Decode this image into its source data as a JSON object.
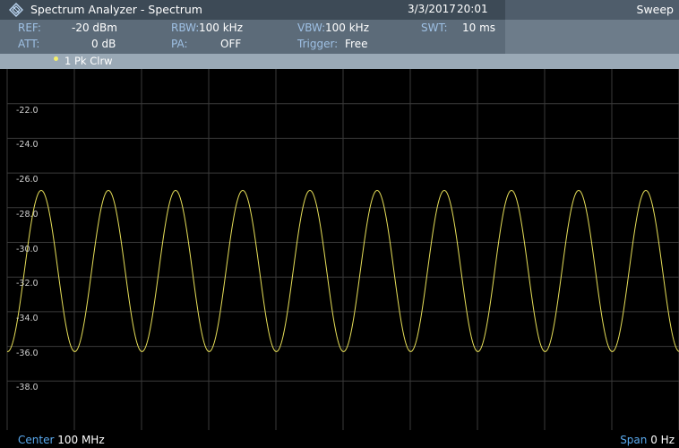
{
  "title_bar": {
    "app_title": "Spectrum Analyzer - Spectrum",
    "date": "3/3/2017",
    "time": "20:01",
    "mode": "Sweep",
    "logo_icon": "rohde-schwarz-logo-icon"
  },
  "parameters": {
    "ref": {
      "label": "REF:",
      "value": "-20 dBm"
    },
    "att": {
      "label": "ATT:",
      "value": "0 dB"
    },
    "rbw": {
      "label": "RBW:",
      "value": "100 kHz"
    },
    "pa": {
      "label": "PA:",
      "value": "OFF"
    },
    "vbw": {
      "label": "VBW:",
      "value": "100 kHz"
    },
    "trigger": {
      "label": "Trigger:",
      "value": "Free"
    },
    "swt": {
      "label": "SWT:",
      "value": "10 ms"
    }
  },
  "trace": {
    "label": "1 Pk  Clrw",
    "color": "#e6de58"
  },
  "plot": {
    "y_ticks": [
      "-22.0",
      "-24.0",
      "-26.0",
      "-28.0",
      "-30.0",
      "-32.0",
      "-34.0",
      "-36.0",
      "-38.0"
    ],
    "y_range": [
      -40,
      -20
    ],
    "waveform": {
      "min_dbm": -36.3,
      "max_dbm": -27.0,
      "cycles": 10
    },
    "colors": {
      "background": "#000000",
      "grid": "#3a3a3a",
      "trace": "#e6de58"
    }
  },
  "footer": {
    "center_label": "Center",
    "center_value": "100 MHz",
    "span_label": "Span",
    "span_value": "0 Hz",
    "label_color": "#5aa9ee"
  }
}
